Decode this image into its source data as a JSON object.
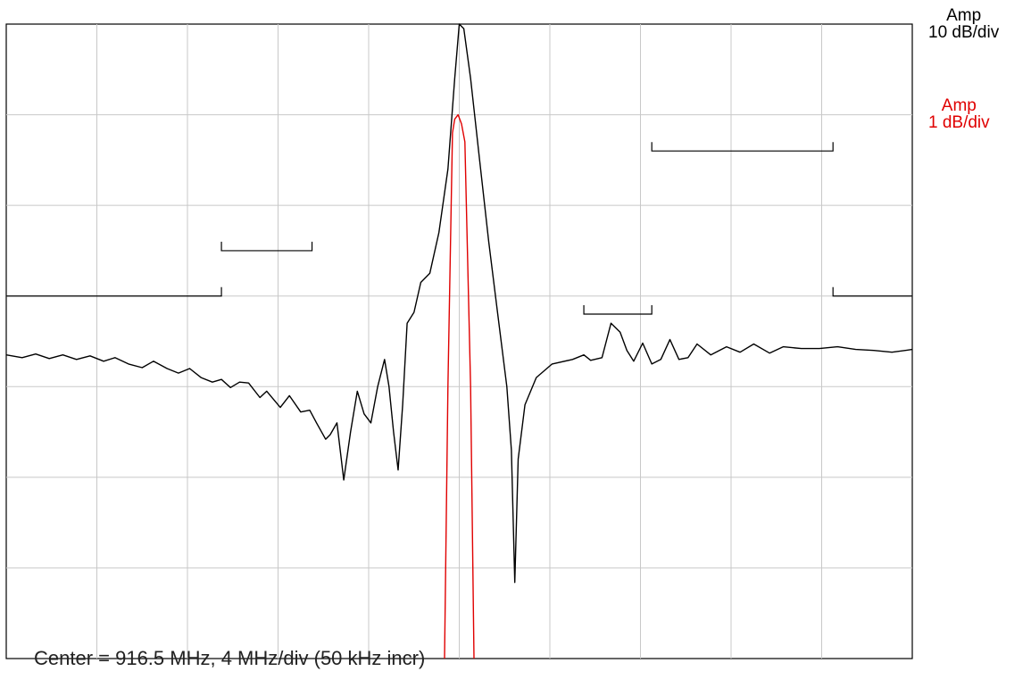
{
  "chart_data": {
    "type": "line",
    "grid": true,
    "x_divisions": 10,
    "y_divisions": 7,
    "caption": "Center = 916.5 MHz, 4 MHz/div (50 kHz incr)",
    "x_center_mhz": 916.5,
    "x_mhz_per_div": 4,
    "xlim_mhz": [
      896.5,
      936.5
    ],
    "ylim_top_db": 0,
    "series": [
      {
        "id": "wide",
        "color": "#000000",
        "axis_label": "Amp",
        "scale_label": "10 dB/div",
        "db_per_div": 10,
        "points_x_mhz_y_db": [
          [
            896.5,
            -36.5
          ],
          [
            897.2,
            -36.8
          ],
          [
            897.8,
            -36.4
          ],
          [
            898.4,
            -36.9
          ],
          [
            899.0,
            -36.5
          ],
          [
            899.6,
            -37.0
          ],
          [
            900.2,
            -36.6
          ],
          [
            900.8,
            -37.2
          ],
          [
            901.3,
            -36.8
          ],
          [
            901.9,
            -37.5
          ],
          [
            902.5,
            -37.9
          ],
          [
            903.0,
            -37.2
          ],
          [
            903.6,
            -38.0
          ],
          [
            904.1,
            -38.5
          ],
          [
            904.6,
            -38.0
          ],
          [
            905.1,
            -39.0
          ],
          [
            905.6,
            -39.5
          ],
          [
            906.0,
            -39.2
          ],
          [
            906.4,
            -40.1
          ],
          [
            906.8,
            -39.5
          ],
          [
            907.2,
            -39.6
          ],
          [
            907.7,
            -41.2
          ],
          [
            908.0,
            -40.5
          ],
          [
            908.6,
            -42.3
          ],
          [
            909.0,
            -41.0
          ],
          [
            909.5,
            -42.8
          ],
          [
            909.9,
            -42.6
          ],
          [
            910.2,
            -44.0
          ],
          [
            910.6,
            -45.8
          ],
          [
            910.8,
            -45.3
          ],
          [
            911.1,
            -44.0
          ],
          [
            911.4,
            -50.3
          ],
          [
            911.7,
            -45.0
          ],
          [
            912.0,
            -40.5
          ],
          [
            912.3,
            -43.0
          ],
          [
            912.6,
            -44.0
          ],
          [
            912.9,
            -40.0
          ],
          [
            913.2,
            -37.0
          ],
          [
            913.4,
            -40.0
          ],
          [
            913.6,
            -45.0
          ],
          [
            913.8,
            -49.2
          ],
          [
            914.0,
            -42.0
          ],
          [
            914.2,
            -33.0
          ],
          [
            914.5,
            -31.8
          ],
          [
            914.8,
            -28.5
          ],
          [
            915.2,
            -27.5
          ],
          [
            915.6,
            -23.0
          ],
          [
            916.0,
            -16.0
          ],
          [
            916.3,
            -6.0
          ],
          [
            916.5,
            0.0
          ],
          [
            916.7,
            -0.5
          ],
          [
            917.0,
            -6.0
          ],
          [
            917.4,
            -15.0
          ],
          [
            917.8,
            -24.0
          ],
          [
            918.2,
            -32.0
          ],
          [
            918.6,
            -40.0
          ],
          [
            918.8,
            -47.0
          ],
          [
            918.95,
            -61.6
          ],
          [
            919.1,
            -48.0
          ],
          [
            919.4,
            -42.0
          ],
          [
            919.9,
            -39.0
          ],
          [
            920.6,
            -37.5
          ],
          [
            921.5,
            -37.0
          ],
          [
            922.0,
            -36.5
          ],
          [
            922.3,
            -37.1
          ],
          [
            922.8,
            -36.8
          ],
          [
            923.2,
            -33.0
          ],
          [
            923.6,
            -34.0
          ],
          [
            923.9,
            -36.0
          ],
          [
            924.2,
            -37.2
          ],
          [
            924.6,
            -35.2
          ],
          [
            925.0,
            -37.5
          ],
          [
            925.4,
            -37.0
          ],
          [
            925.8,
            -34.8
          ],
          [
            926.2,
            -37.0
          ],
          [
            926.6,
            -36.8
          ],
          [
            927.0,
            -35.3
          ],
          [
            927.6,
            -36.5
          ],
          [
            928.3,
            -35.6
          ],
          [
            928.9,
            -36.2
          ],
          [
            929.5,
            -35.3
          ],
          [
            930.2,
            -36.3
          ],
          [
            930.8,
            -35.6
          ],
          [
            931.6,
            -35.8
          ],
          [
            932.4,
            -35.8
          ],
          [
            933.2,
            -35.6
          ],
          [
            934.0,
            -35.9
          ],
          [
            934.8,
            -36.0
          ],
          [
            935.6,
            -36.2
          ],
          [
            936.5,
            -35.9
          ]
        ]
      },
      {
        "id": "narrow",
        "color": "#e00000",
        "axis_label": "Amp",
        "scale_label": "1 dB/div",
        "db_per_div": 1,
        "top_db_at_grid_line": 1,
        "points_x_mhz_y_db": [
          [
            915.85,
            -6.0
          ],
          [
            916.0,
            -3.0
          ],
          [
            916.2,
            -0.2
          ],
          [
            916.3,
            -0.05
          ],
          [
            916.45,
            -0.0
          ],
          [
            916.6,
            -0.1
          ],
          [
            916.75,
            -0.3
          ],
          [
            917.0,
            -3.0
          ],
          [
            917.15,
            -6.0
          ]
        ]
      }
    ],
    "mask_lines": [
      {
        "type": "floor",
        "x_mhz": [
          896.5,
          906.0
        ],
        "y_db": -30,
        "tick_up_end": true
      },
      {
        "type": "bracket",
        "x_mhz": [
          906.0,
          910.0
        ],
        "y_db": -25
      },
      {
        "type": "bracket",
        "x_mhz": [
          922.0,
          925.0
        ],
        "y_db": -32
      },
      {
        "type": "bracket",
        "x_mhz": [
          925.0,
          933.0
        ],
        "y_db": -14
      },
      {
        "type": "floor",
        "x_mhz": [
          933.0,
          936.5
        ],
        "y_db": -30,
        "tick_up_start": true
      }
    ]
  }
}
